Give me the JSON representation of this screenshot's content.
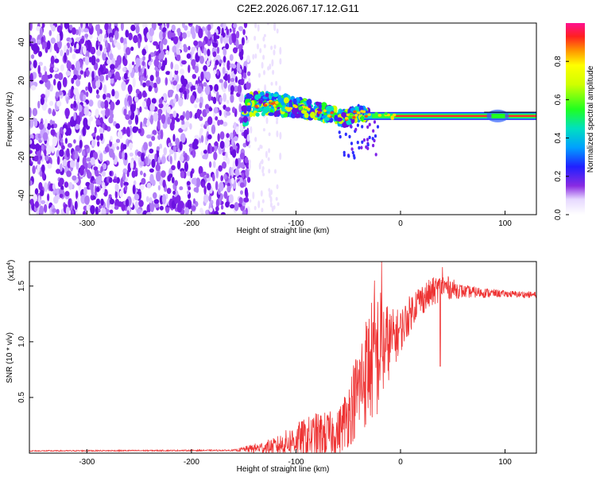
{
  "title": "C2E2.2026.067.17.12.G11",
  "chart_data": [
    {
      "type": "heatmap",
      "name": "spectrogram",
      "xlabel": "Height of straight line (km)",
      "ylabel": "Frequency (Hz)",
      "xlim": [
        -355,
        130
      ],
      "ylim": [
        -50,
        50
      ],
      "xticks": [
        -300,
        -200,
        -100,
        0,
        100
      ],
      "xtick_labels": [
        "-300",
        "-200",
        "-100",
        "0",
        "100"
      ],
      "yticks": [
        -40,
        -20,
        0,
        20,
        40
      ],
      "ytick_labels": [
        "-40",
        "-20",
        "0",
        "20",
        "40"
      ],
      "noise_region_x": [
        -355,
        -145
      ],
      "signal_track": [
        {
          "x": -148,
          "f": 7
        },
        {
          "x": -130,
          "f": 8
        },
        {
          "x": -110,
          "f": 7
        },
        {
          "x": -90,
          "f": 5
        },
        {
          "x": -70,
          "f": 3
        },
        {
          "x": -55,
          "f": 0
        },
        {
          "x": -40,
          "f": 3
        },
        {
          "x": -20,
          "f": 1.5
        },
        {
          "x": 0,
          "f": 1.5
        },
        {
          "x": 50,
          "f": 1.5
        },
        {
          "x": 100,
          "f": 1.5
        },
        {
          "x": 130,
          "f": 1.5
        }
      ],
      "colorbar": {
        "label": "Normalized spectral amplitude",
        "range": [
          0,
          1
        ],
        "ticks": [
          0.0,
          0.2,
          0.4,
          0.6,
          0.8
        ],
        "tick_labels": [
          "0.0",
          "0.2",
          "0.4",
          "0.6",
          "0.8"
        ]
      }
    },
    {
      "type": "line",
      "name": "snr",
      "xlabel": "Height of straight line (km)",
      "ylabel": "SNR (10 * v/v)",
      "y_scale_label": "(x10",
      "y_scale_exponent": "4",
      "color": "#ee3333",
      "xlim": [
        -355,
        130
      ],
      "ylim": [
        0,
        1.72
      ],
      "xticks": [
        -300,
        -200,
        -100,
        0,
        100
      ],
      "xtick_labels": [
        "-300",
        "-200",
        "-100",
        "0",
        "100"
      ],
      "yticks": [
        0.5,
        1.0,
        1.5
      ],
      "ytick_labels": [
        "0.5",
        "1.0",
        "1.5"
      ],
      "envelope": [
        {
          "x": -355,
          "mean": 0.02,
          "spread": 0.005
        },
        {
          "x": -160,
          "mean": 0.025,
          "spread": 0.006
        },
        {
          "x": -120,
          "mean": 0.06,
          "spread": 0.08
        },
        {
          "x": -100,
          "mean": 0.12,
          "spread": 0.15
        },
        {
          "x": -80,
          "mean": 0.15,
          "spread": 0.22
        },
        {
          "x": -60,
          "mean": 0.18,
          "spread": 0.2
        },
        {
          "x": -50,
          "mean": 0.35,
          "spread": 0.3
        },
        {
          "x": -30,
          "mean": 0.8,
          "spread": 0.55
        },
        {
          "x": -20,
          "mean": 0.9,
          "spread": 0.6
        },
        {
          "x": -10,
          "mean": 1.0,
          "spread": 0.3
        },
        {
          "x": 0,
          "mean": 1.1,
          "spread": 0.2
        },
        {
          "x": 15,
          "mean": 1.35,
          "spread": 0.15
        },
        {
          "x": 40,
          "mean": 1.5,
          "spread": 0.12
        },
        {
          "x": 60,
          "mean": 1.45,
          "spread": 0.06
        },
        {
          "x": 100,
          "mean": 1.43,
          "spread": 0.03
        },
        {
          "x": 130,
          "mean": 1.42,
          "spread": 0.03
        }
      ],
      "notable_peaks": [
        {
          "x": -18,
          "y": 1.72
        },
        {
          "x": -25,
          "y": 1.55
        },
        {
          "x": 40,
          "y": 1.67
        },
        {
          "x": 38,
          "y": 0.78
        }
      ]
    }
  ]
}
